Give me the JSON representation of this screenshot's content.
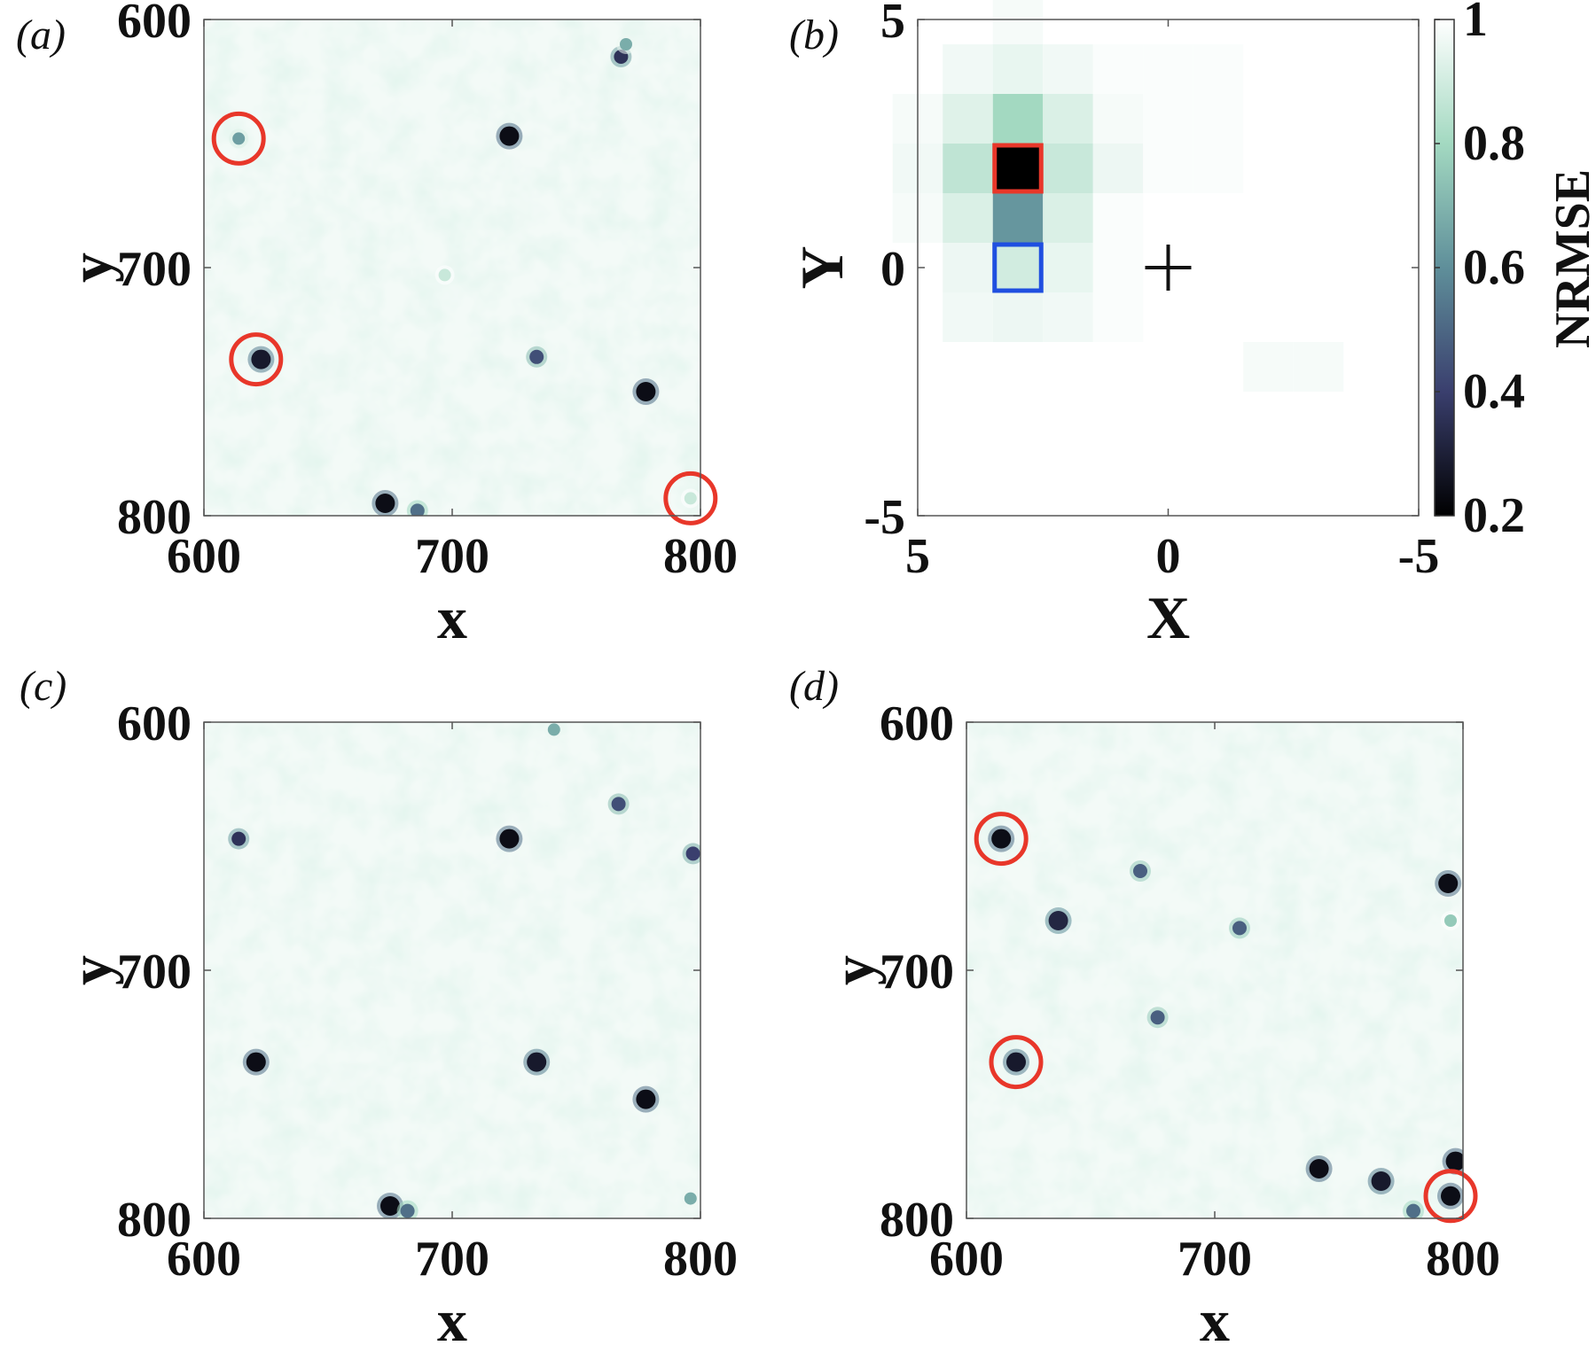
{
  "chart_data": [
    {
      "panel": "(a)",
      "type": "heatmap",
      "xlabel": "x",
      "ylabel": "y",
      "xlim": [
        600,
        800
      ],
      "ylim": [
        600,
        800
      ],
      "x_ticks": [
        "600",
        "700",
        "800"
      ],
      "y_ticks": [
        "600",
        "700",
        "800"
      ],
      "y_reversed": true,
      "colormap": "bone-green (dark = low, white = high)",
      "particles": [
        {
          "x": 614,
          "y": 648,
          "value": 0.55
        },
        {
          "x": 623,
          "y": 737,
          "value": 0.1
        },
        {
          "x": 673,
          "y": 795,
          "value": 0.05
        },
        {
          "x": 723,
          "y": 647,
          "value": 0.05
        },
        {
          "x": 734,
          "y": 736,
          "value": 0.3
        },
        {
          "x": 778,
          "y": 750,
          "value": 0.05
        },
        {
          "x": 768,
          "y": 615,
          "value": 0.2
        },
        {
          "x": 686,
          "y": 798,
          "value": 0.4
        },
        {
          "x": 796,
          "y": 793,
          "value": 0.85
        },
        {
          "x": 697,
          "y": 703,
          "value": 0.85
        },
        {
          "x": 770,
          "y": 610,
          "value": 0.6
        }
      ],
      "highlighted_particles": [
        {
          "x": 614,
          "y": 648
        },
        {
          "x": 621,
          "y": 737
        },
        {
          "x": 796,
          "y": 793
        }
      ],
      "highlight_color": "#e8372a"
    },
    {
      "panel": "(b)",
      "type": "heatmap",
      "xlabel": "X",
      "ylabel": "Y",
      "xlim": [
        5,
        -5
      ],
      "ylim": [
        -5,
        5
      ],
      "x_ticks": [
        "5",
        "0",
        "-5"
      ],
      "y_ticks": [
        "5",
        "0",
        "-5"
      ],
      "colorbar": {
        "label": "NRMSE",
        "range": [
          0.2,
          1
        ],
        "ticks": [
          "1",
          "0.8",
          "0.6",
          "0.4",
          "0.2"
        ]
      },
      "cells": [
        {
          "x": 3,
          "y": 5,
          "value": 0.98
        },
        {
          "x": 4,
          "y": 4,
          "value": 0.97
        },
        {
          "x": 3,
          "y": 4,
          "value": 0.95
        },
        {
          "x": 2,
          "y": 4,
          "value": 0.97
        },
        {
          "x": 1,
          "y": 4,
          "value": 0.99
        },
        {
          "x": 0,
          "y": 4,
          "value": 0.99
        },
        {
          "x": -1,
          "y": 4,
          "value": 0.99
        },
        {
          "x": 5,
          "y": 3,
          "value": 0.98
        },
        {
          "x": 4,
          "y": 3,
          "value": 0.93
        },
        {
          "x": 3,
          "y": 3,
          "value": 0.8
        },
        {
          "x": 2,
          "y": 3,
          "value": 0.92
        },
        {
          "x": 1,
          "y": 3,
          "value": 0.98
        },
        {
          "x": 0,
          "y": 3,
          "value": 0.99
        },
        {
          "x": -1,
          "y": 3,
          "value": 0.99
        },
        {
          "x": 5,
          "y": 2,
          "value": 0.97
        },
        {
          "x": 4,
          "y": 2,
          "value": 0.86
        },
        {
          "x": 3,
          "y": 2,
          "value": 0.2
        },
        {
          "x": 2,
          "y": 2,
          "value": 0.88
        },
        {
          "x": 1,
          "y": 2,
          "value": 0.96
        },
        {
          "x": 0,
          "y": 2,
          "value": 0.99
        },
        {
          "x": -1,
          "y": 2,
          "value": 0.99
        },
        {
          "x": 5,
          "y": 1,
          "value": 0.98
        },
        {
          "x": 4,
          "y": 1,
          "value": 0.92
        },
        {
          "x": 3,
          "y": 1,
          "value": 0.62
        },
        {
          "x": 2,
          "y": 1,
          "value": 0.92
        },
        {
          "x": 1,
          "y": 1,
          "value": 0.99
        },
        {
          "x": 4,
          "y": 0,
          "value": 0.96
        },
        {
          "x": 3,
          "y": 0,
          "value": 0.9
        },
        {
          "x": 2,
          "y": 0,
          "value": 0.95
        },
        {
          "x": 1,
          "y": 0,
          "value": 0.99
        },
        {
          "x": 4,
          "y": -1,
          "value": 0.97
        },
        {
          "x": 3,
          "y": -1,
          "value": 0.96
        },
        {
          "x": 2,
          "y": -1,
          "value": 0.97
        },
        {
          "x": 1,
          "y": -1,
          "value": 0.99
        },
        {
          "x": -2,
          "y": -2,
          "value": 0.98
        },
        {
          "x": -3,
          "y": -2,
          "value": 0.98
        }
      ],
      "red_box": {
        "x": 3,
        "y": 2,
        "color": "#e8372a"
      },
      "blue_box": {
        "x": 3,
        "y": 0,
        "color": "#1f4fe0"
      },
      "cross_marker": {
        "x": 0,
        "y": 0
      }
    },
    {
      "panel": "(c)",
      "type": "heatmap",
      "xlabel": "x",
      "ylabel": "y",
      "xlim": [
        600,
        800
      ],
      "ylim": [
        600,
        800
      ],
      "x_ticks": [
        "600",
        "700",
        "800"
      ],
      "y_ticks": [
        "600",
        "700",
        "800"
      ],
      "y_reversed": true,
      "particles": [
        {
          "x": 614,
          "y": 647,
          "value": 0.2
        },
        {
          "x": 621,
          "y": 737,
          "value": 0.05
        },
        {
          "x": 723,
          "y": 647,
          "value": 0.05
        },
        {
          "x": 734,
          "y": 737,
          "value": 0.1
        },
        {
          "x": 778,
          "y": 752,
          "value": 0.05
        },
        {
          "x": 675,
          "y": 795,
          "value": 0.05
        },
        {
          "x": 767,
          "y": 633,
          "value": 0.3
        },
        {
          "x": 797,
          "y": 653,
          "value": 0.25
        },
        {
          "x": 682,
          "y": 797,
          "value": 0.4
        },
        {
          "x": 796,
          "y": 792,
          "value": 0.6
        },
        {
          "x": 741,
          "y": 603,
          "value": 0.6
        }
      ]
    },
    {
      "panel": "(d)",
      "type": "heatmap",
      "xlabel": "x",
      "ylabel": "y",
      "xlim": [
        600,
        800
      ],
      "ylim": [
        600,
        800
      ],
      "x_ticks": [
        "600",
        "700",
        "800"
      ],
      "y_ticks": [
        "600",
        "700",
        "800"
      ],
      "y_reversed": true,
      "particles": [
        {
          "x": 614,
          "y": 647,
          "value": 0.05
        },
        {
          "x": 620,
          "y": 737,
          "value": 0.1
        },
        {
          "x": 795,
          "y": 791,
          "value": 0.05
        },
        {
          "x": 637,
          "y": 680,
          "value": 0.15
        },
        {
          "x": 670,
          "y": 660,
          "value": 0.35
        },
        {
          "x": 710,
          "y": 683,
          "value": 0.35
        },
        {
          "x": 677,
          "y": 719,
          "value": 0.35
        },
        {
          "x": 794,
          "y": 665,
          "value": 0.05
        },
        {
          "x": 742,
          "y": 780,
          "value": 0.05
        },
        {
          "x": 767,
          "y": 785,
          "value": 0.1
        },
        {
          "x": 797,
          "y": 777,
          "value": 0.05
        },
        {
          "x": 780,
          "y": 797,
          "value": 0.4
        },
        {
          "x": 795,
          "y": 680,
          "value": 0.7
        }
      ],
      "highlighted_particles": [
        {
          "x": 614,
          "y": 647
        },
        {
          "x": 620,
          "y": 737
        },
        {
          "x": 795,
          "y": 791
        }
      ],
      "highlight_color": "#e8372a"
    }
  ]
}
